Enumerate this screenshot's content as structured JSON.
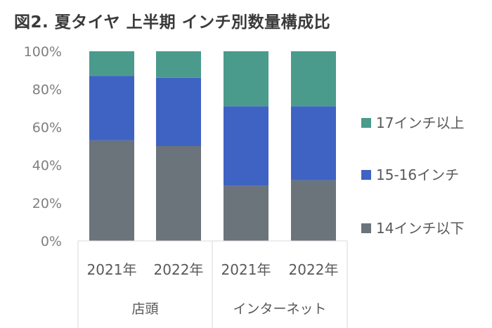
{
  "title": "図2. 夏タイヤ 上半期 インチ別数量構成比",
  "colors": {
    "s14": "#6b747a",
    "s15_16": "#3f63c3",
    "s17": "#4a9b8c"
  },
  "chart_data": {
    "type": "bar",
    "stacked": true,
    "categories": [
      "2021年",
      "2022年",
      "2021年",
      "2022年"
    ],
    "groups": [
      {
        "label": "店頭",
        "categories": [
          0,
          1
        ]
      },
      {
        "label": "インターネット",
        "categories": [
          2,
          3
        ]
      }
    ],
    "series": [
      {
        "name": "14インチ以下",
        "values": [
          53,
          50,
          29,
          32
        ]
      },
      {
        "name": "15-16インチ",
        "values": [
          34,
          36,
          42,
          39
        ]
      },
      {
        "name": "17インチ以上",
        "values": [
          13,
          14,
          29,
          29
        ]
      }
    ],
    "ylim": [
      0,
      100
    ],
    "yticks": [
      "0%",
      "20%",
      "40%",
      "60%",
      "80%",
      "100%"
    ],
    "legend_position": "right",
    "grid": false
  }
}
